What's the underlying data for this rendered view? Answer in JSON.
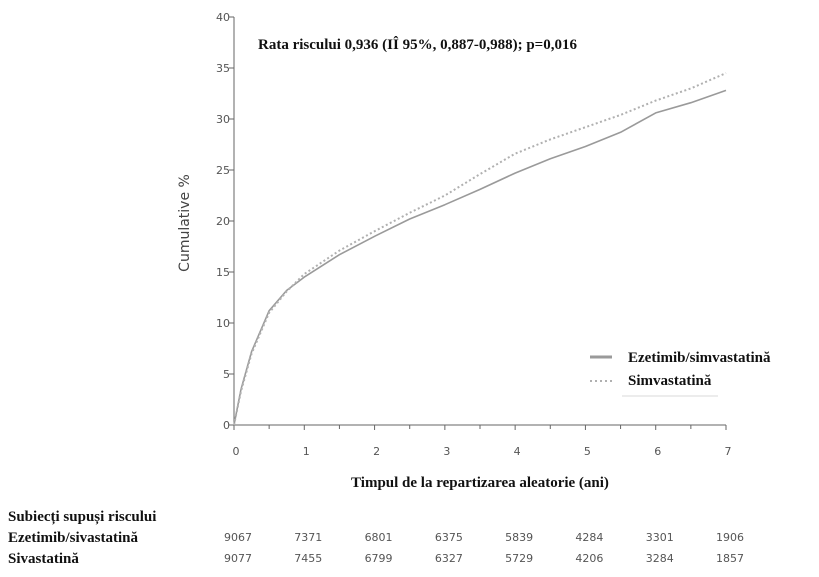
{
  "chart_data": {
    "type": "line",
    "title": "Rata riscului 0,936 (IÎ 95%, 0,887-0,988); p=0,016",
    "xlabel": "Timpul de la repartizarea aleatorie (ani)",
    "ylabel": "Cumulative %",
    "xlim": [
      0,
      7
    ],
    "ylim": [
      0,
      40
    ],
    "x_ticks": [
      "0",
      "1",
      "2",
      "3",
      "4",
      "5",
      "6",
      "7"
    ],
    "y_ticks": [
      "0",
      "5",
      "10",
      "15",
      "20",
      "25",
      "30",
      "35",
      "40"
    ],
    "grid": false,
    "legend_position": "bottom-right",
    "series": [
      {
        "name": "Ezetimib/simvastatină",
        "style": "solid",
        "color": "#9a9a9a",
        "x": [
          0,
          0.1,
          0.25,
          0.5,
          0.75,
          1,
          1.5,
          2,
          2.5,
          3,
          3.5,
          4,
          4.5,
          5,
          5.5,
          6,
          6.5,
          7
        ],
        "y": [
          0,
          3.5,
          7.2,
          11.2,
          13.2,
          14.5,
          16.7,
          18.5,
          20.2,
          21.6,
          23.1,
          24.7,
          26.1,
          27.3,
          28.7,
          30.6,
          31.6,
          32.8
        ]
      },
      {
        "name": "Simvastatină",
        "style": "dotted",
        "color": "#b0b0b0",
        "x": [
          0,
          0.1,
          0.25,
          0.5,
          0.75,
          1,
          1.5,
          2,
          2.5,
          3,
          3.5,
          4,
          4.5,
          5,
          5.5,
          6,
          6.5,
          7
        ],
        "y": [
          0,
          3.3,
          7.0,
          11.0,
          13.1,
          14.8,
          17.1,
          19.0,
          20.8,
          22.5,
          24.6,
          26.6,
          28.0,
          29.2,
          30.4,
          31.8,
          33.0,
          34.5
        ]
      }
    ],
    "risk_table": {
      "header": "Subiecți supuși riscului",
      "rows": [
        {
          "label": "Ezetimib/sivastatină",
          "values": [
            "9067",
            "7371",
            "6801",
            "6375",
            "5839",
            "4284",
            "3301",
            "1906"
          ]
        },
        {
          "label": "Sivastatină",
          "values": [
            "9077",
            "7455",
            "6799",
            "6327",
            "5729",
            "4206",
            "3284",
            "1857"
          ]
        }
      ]
    }
  }
}
